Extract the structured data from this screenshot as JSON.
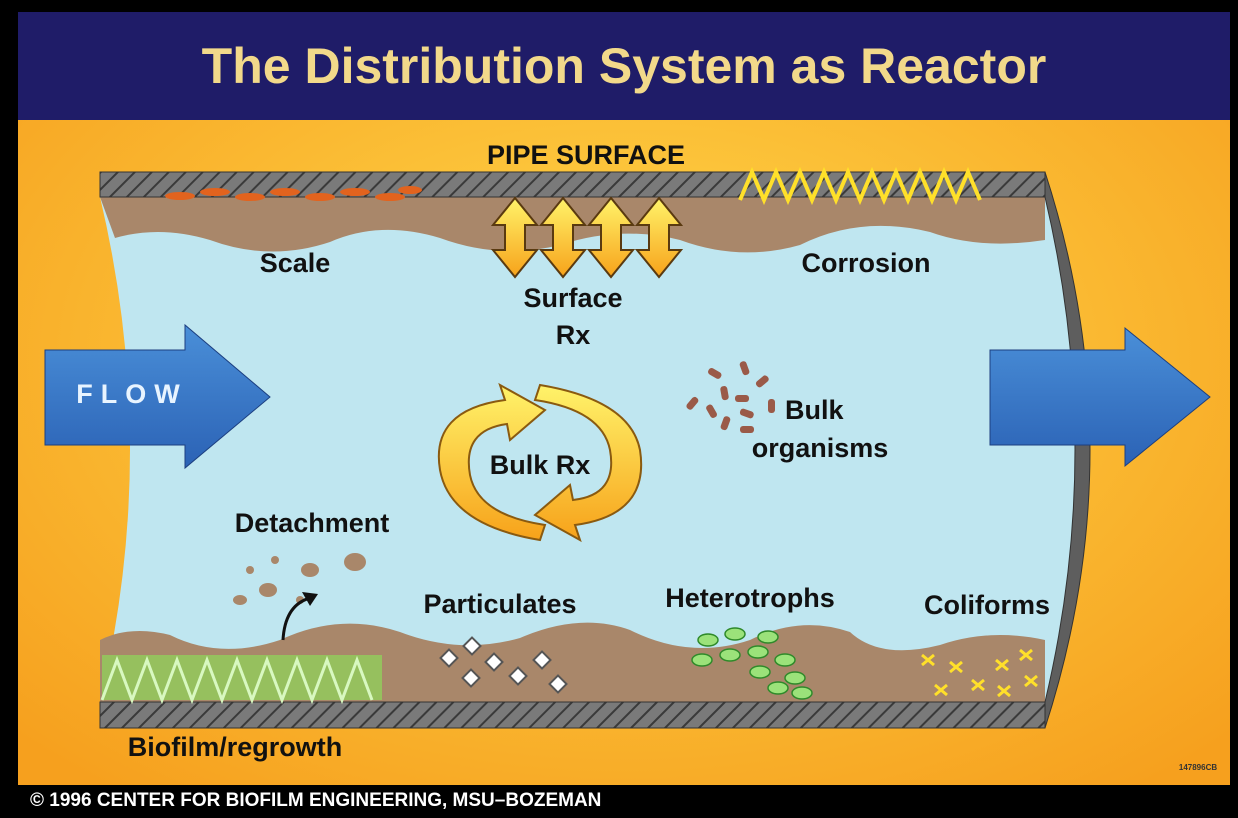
{
  "title": "The Distribution System as Reactor",
  "labels": {
    "pipe_surface": "PIPE SURFACE",
    "scale": "Scale",
    "corrosion": "Corrosion",
    "surface_rx": [
      "Surface",
      "Rx"
    ],
    "flow": "FLOW",
    "bulk_rx": "Bulk Rx",
    "bulk_organisms": [
      "Bulk",
      "organisms"
    ],
    "detachment": "Detachment",
    "particulates": "Particulates",
    "heterotrophs": "Heterotrophs",
    "coliforms": "Coliforms",
    "biofilm": "Biofilm/regrowth",
    "code": "147896CB"
  },
  "footer": "© 1996   CENTER FOR BIOFILM ENGINEERING, MSU–BOZEMAN"
}
